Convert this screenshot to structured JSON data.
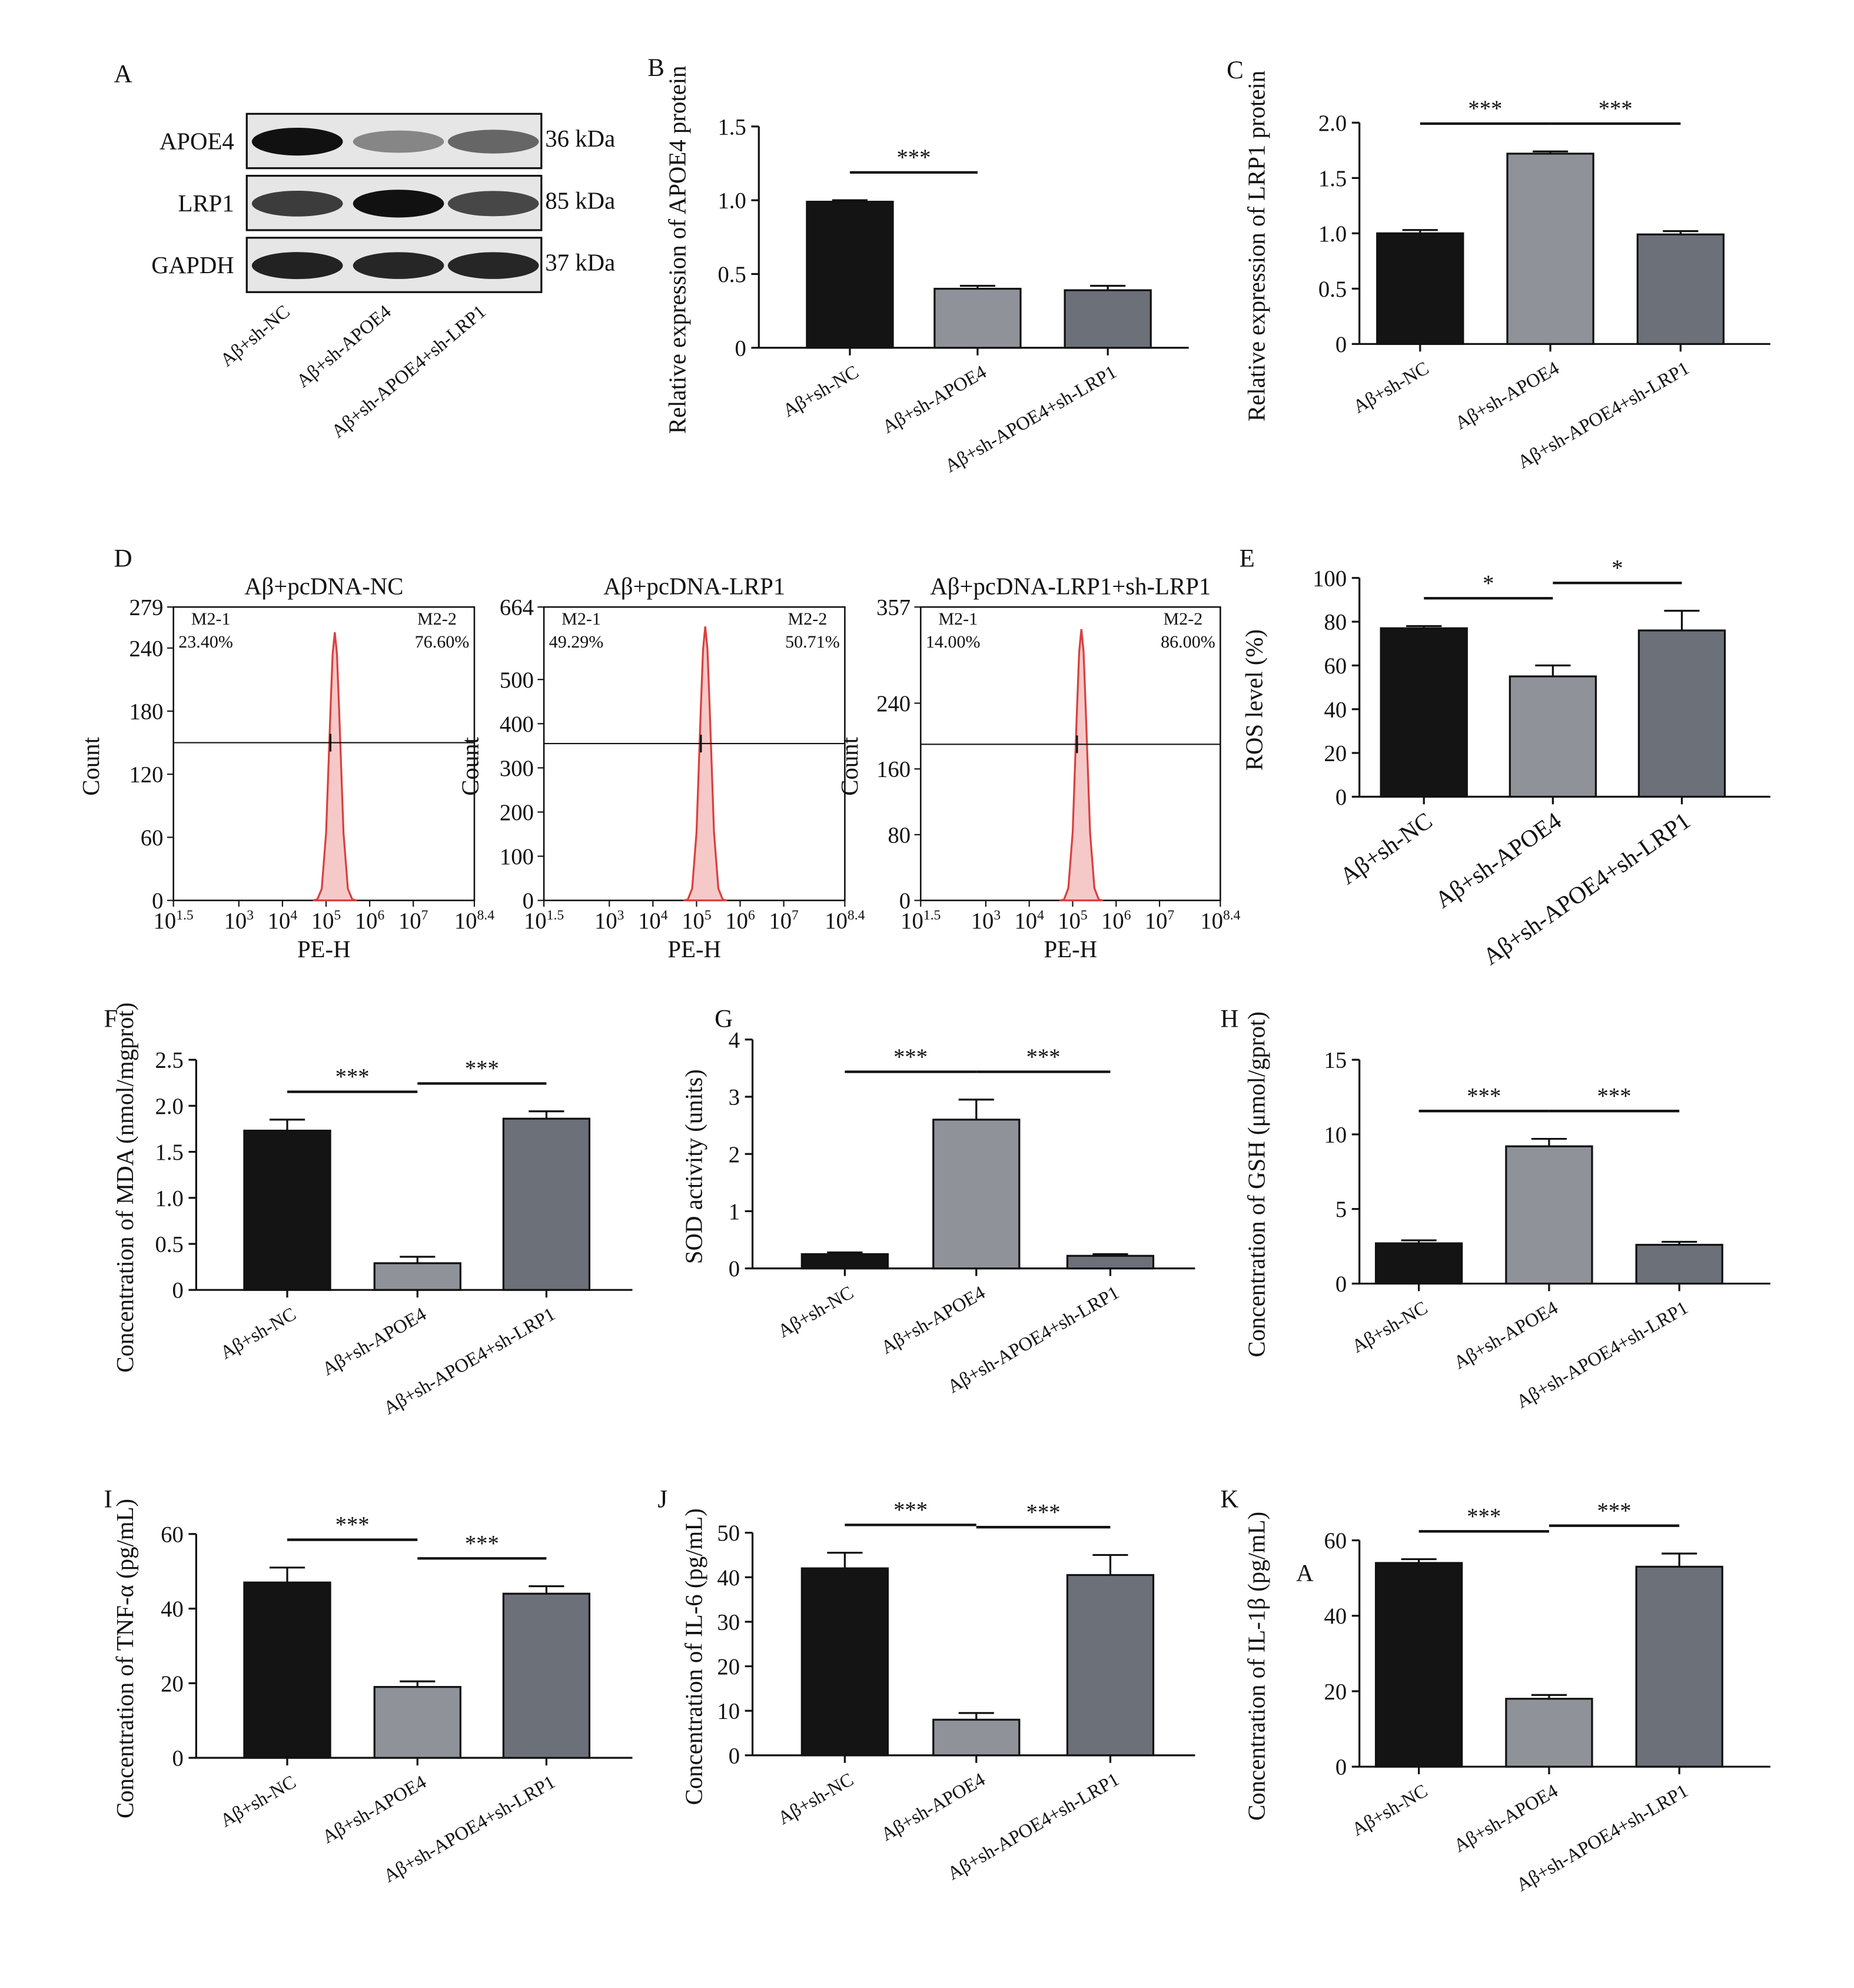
{
  "chart_data": [
    {
      "type": "blot",
      "label": "A",
      "rows": [
        {
          "name": "APOE4",
          "size": "36 kDa"
        },
        {
          "name": "LRP1",
          "size": "85 kDa"
        },
        {
          "name": "GAPDH",
          "size": "37 kDa"
        }
      ],
      "categories": [
        "Aβ+sh-NC",
        "Aβ+sh-APOE4",
        "Aβ+sh-APOE4+sh-LRP1"
      ]
    },
    {
      "type": "bar",
      "label": "B",
      "ylabel": "Relative expression of APOE4 protein",
      "categories": [
        "Aβ+sh-NC",
        "Aβ+sh-APOE4",
        "Aβ+sh-APOE4+sh-LRP1"
      ],
      "values": [
        0.99,
        0.4,
        0.39
      ],
      "errors": [
        0.01,
        0.02,
        0.03
      ],
      "colors": [
        "#141414",
        "#8f9399",
        "#6c7079"
      ],
      "ylim": [
        0,
        1.5
      ],
      "yticks": [
        0,
        0.5,
        {
          "value": 1,
          "label": "1.0"
        },
        1.5
      ],
      "annotations": [
        "***"
      ]
    },
    {
      "type": "bar",
      "label": "C",
      "ylabel": "Relative expression of LRP1 protein",
      "categories": [
        "Aβ+sh-NC",
        "Aβ+sh-APOE4",
        "Aβ+sh-APOE4+sh-LRP1"
      ],
      "values": [
        1.0,
        1.72,
        0.99
      ],
      "errors": [
        0.03,
        0.02,
        0.03
      ],
      "colors": [
        "#141414",
        "#8f9399",
        "#6c7079"
      ],
      "ylim": [
        0,
        2
      ],
      "yticks": [
        0,
        0.5,
        {
          "value": 1,
          "label": "1.0"
        },
        1.5,
        {
          "value": 2,
          "label": "2.0"
        }
      ],
      "annotations": [
        "***",
        "***"
      ]
    },
    {
      "type": "flow",
      "label": "D",
      "title": "Aβ+pcDNA-NC",
      "xlabel": "PE-H",
      "ylabel": "Count",
      "x": [
        50119,
        63096,
        79433,
        100000,
        125893,
        141254,
        158489,
        177828,
        199526,
        251189,
        316228,
        398107,
        501187
      ],
      "values": [
        0,
        1,
        11,
        64,
        180,
        234,
        255,
        234,
        180,
        64,
        11,
        1,
        0
      ],
      "xlim": [
        31.62,
        251188643
      ],
      "xticks": [
        {
          "value": 31.62,
          "label": "10",
          "sup": "1.5"
        },
        {
          "value": 1000,
          "label": "10",
          "sup": "3"
        },
        {
          "value": 10000,
          "label": "10",
          "sup": "4"
        },
        {
          "value": 100000,
          "label": "10",
          "sup": "5"
        },
        {
          "value": 1000000,
          "label": "10",
          "sup": "6"
        },
        {
          "value": 10000000,
          "label": "10",
          "sup": "7"
        },
        {
          "value": 251188643,
          "label": "10",
          "sup": "8.4"
        }
      ],
      "ylim": [
        0,
        279
      ],
      "yticks": [
        0,
        60,
        120,
        180,
        240,
        279
      ],
      "gate_x": 125893,
      "gate_y": 150,
      "gates": [
        {
          "name": "M2-1",
          "value": 23.4,
          "label": "23.40%"
        },
        {
          "name": "M2-2",
          "value": 76.6,
          "label": "76.60%"
        }
      ],
      "color": "#d9403f"
    },
    {
      "type": "flow",
      "title": "Aβ+pcDNA-LRP1",
      "xlabel": "PE-H",
      "ylabel": "Count",
      "x": [
        50119,
        63096,
        79433,
        100000,
        125893,
        141254,
        158489,
        177828,
        199526,
        251189,
        316228,
        398107,
        501187
      ],
      "values": [
        0,
        2,
        27,
        155,
        440,
        569,
        620,
        569,
        440,
        155,
        27,
        2,
        0
      ],
      "xlim": [
        31.62,
        251188643
      ],
      "xticks": [
        {
          "value": 31.62,
          "label": "10",
          "sup": "1.5"
        },
        {
          "value": 1000,
          "label": "10",
          "sup": "3"
        },
        {
          "value": 10000,
          "label": "10",
          "sup": "4"
        },
        {
          "value": 100000,
          "label": "10",
          "sup": "5"
        },
        {
          "value": 1000000,
          "label": "10",
          "sup": "6"
        },
        {
          "value": 10000000,
          "label": "10",
          "sup": "7"
        },
        {
          "value": 251188643,
          "label": "10",
          "sup": "8.4"
        }
      ],
      "ylim": [
        0,
        664
      ],
      "yticks": [
        0,
        100,
        200,
        300,
        400,
        500,
        664
      ],
      "gate_x": 125893,
      "gate_y": 355,
      "gates": [
        {
          "name": "M2-1",
          "value": 49.29,
          "label": "49.29%"
        },
        {
          "name": "M2-2",
          "value": 50.71,
          "label": "50.71%"
        }
      ],
      "color": "#d9403f"
    },
    {
      "type": "flow",
      "title": "Aβ+pcDNA-LRP1+sh-LRP1",
      "xlabel": "PE-H",
      "ylabel": "Count",
      "x": [
        50119,
        63096,
        79433,
        100000,
        125893,
        141254,
        158489,
        177828,
        199526,
        251189,
        316228,
        398107,
        501187
      ],
      "values": [
        0,
        1,
        15,
        83,
        234,
        303,
        330,
        303,
        234,
        83,
        15,
        1,
        0
      ],
      "xlim": [
        31.62,
        251188643
      ],
      "xticks": [
        {
          "value": 31.62,
          "label": "10",
          "sup": "1.5"
        },
        {
          "value": 1000,
          "label": "10",
          "sup": "3"
        },
        {
          "value": 10000,
          "label": "10",
          "sup": "4"
        },
        {
          "value": 100000,
          "label": "10",
          "sup": "5"
        },
        {
          "value": 1000000,
          "label": "10",
          "sup": "6"
        },
        {
          "value": 10000000,
          "label": "10",
          "sup": "7"
        },
        {
          "value": 251188643,
          "label": "10",
          "sup": "8.4"
        }
      ],
      "ylim": [
        0,
        357
      ],
      "yticks": [
        0,
        80,
        160,
        240,
        357
      ],
      "gate_x": 125893,
      "gate_y": 190,
      "gates": [
        {
          "name": "M2-1",
          "value": 14.0,
          "label": "14.00%"
        },
        {
          "name": "M2-2",
          "value": 86.0,
          "label": "86.00%"
        }
      ],
      "color": "#d9403f"
    },
    {
      "type": "bar",
      "label": "E",
      "ylabel": "ROS level (%)",
      "categories": [
        "Aβ+sh-NC",
        "Aβ+sh-APOE4",
        "Aβ+sh-APOE4+sh-LRP1"
      ],
      "values": [
        77,
        55,
        76
      ],
      "errors": [
        1,
        5,
        9
      ],
      "colors": [
        "#141414",
        "#8f9399",
        "#6c7079"
      ],
      "ylim": [
        0,
        100
      ],
      "yticks": [
        0,
        20,
        40,
        60,
        80,
        100
      ],
      "annotations": [
        "*",
        "*"
      ]
    },
    {
      "type": "bar",
      "label": "F",
      "ylabel": "Concentration of MDA (nmol/mgprot)",
      "categories": [
        "Aβ+sh-NC",
        "Aβ+sh-APOE4",
        "Aβ+sh-APOE4+sh-LRP1"
      ],
      "values": [
        1.73,
        0.29,
        1.86
      ],
      "errors": [
        0.12,
        0.07,
        0.08
      ],
      "colors": [
        "#141414",
        "#8f9399",
        "#6c7079"
      ],
      "ylim": [
        0,
        2.5
      ],
      "yticks": [
        0,
        0.5,
        {
          "value": 1,
          "label": "1.0"
        },
        1.5,
        {
          "value": 2,
          "label": "2.0"
        },
        2.5
      ],
      "annotations": [
        "***",
        "***"
      ]
    },
    {
      "type": "bar",
      "label": "G",
      "ylabel": "SOD activity (units)",
      "categories": [
        "Aβ+sh-NC",
        "Aβ+sh-APOE4",
        "Aβ+sh-APOE4+sh-LRP1"
      ],
      "values": [
        0.25,
        2.6,
        0.22
      ],
      "errors": [
        0.03,
        0.35,
        0.03
      ],
      "colors": [
        "#141414",
        "#8f9399",
        "#6c7079"
      ],
      "ylim": [
        0,
        4
      ],
      "yticks": [
        0,
        1,
        2,
        3,
        4
      ],
      "annotations": [
        "***",
        "***"
      ]
    },
    {
      "type": "bar",
      "label": "H",
      "ylabel": "Concentration of GSH (μmol/gprot)",
      "categories": [
        "Aβ+sh-NC",
        "Aβ+sh-APOE4",
        "Aβ+sh-APOE4+sh-LRP1"
      ],
      "values": [
        2.7,
        9.2,
        2.6
      ],
      "errors": [
        0.2,
        0.5,
        0.2
      ],
      "colors": [
        "#141414",
        "#8f9399",
        "#6c7079"
      ],
      "ylim": [
        0,
        15
      ],
      "yticks": [
        0,
        5,
        10,
        15
      ],
      "annotations": [
        "***",
        "***"
      ]
    },
    {
      "type": "bar",
      "label": "I",
      "ylabel": "Concentration of TNF-α (pg/mL)",
      "categories": [
        "Aβ+sh-NC",
        "Aβ+sh-APOE4",
        "Aβ+sh-APOE4+sh-LRP1"
      ],
      "values": [
        47,
        19,
        44
      ],
      "errors": [
        4,
        1.5,
        2
      ],
      "colors": [
        "#141414",
        "#8f9399",
        "#6c7079"
      ],
      "ylim": [
        0,
        60
      ],
      "yticks": [
        0,
        20,
        40,
        60
      ],
      "annotations": [
        "***",
        "***"
      ]
    },
    {
      "type": "bar",
      "label": "J",
      "ylabel": "Concentration of IL-6 (pg/mL)",
      "categories": [
        "Aβ+sh-NC",
        "Aβ+sh-APOE4",
        "Aβ+sh-APOE4+sh-LRP1"
      ],
      "values": [
        42,
        8,
        40.5
      ],
      "errors": [
        3.5,
        1.5,
        4.5
      ],
      "colors": [
        "#141414",
        "#8f9399",
        "#6c7079"
      ],
      "ylim": [
        0,
        50
      ],
      "yticks": [
        0,
        10,
        20,
        30,
        40,
        50
      ],
      "annotations": [
        "***",
        "***"
      ]
    },
    {
      "type": "bar",
      "label": "K",
      "ylabel": "Concentration of IL-1β (pg/mL)",
      "categories": [
        "Aβ+sh-NC",
        "Aβ+sh-APOE4",
        "Aβ+sh-APOE4+sh-LRP1"
      ],
      "values": [
        54,
        18,
        53
      ],
      "errors": [
        1,
        1,
        3.5
      ],
      "colors": [
        "#141414",
        "#8f9399",
        "#6c7079"
      ],
      "ylim": [
        0,
        60
      ],
      "yticks": [
        0,
        20,
        40,
        60
      ],
      "annotations": [
        "***",
        "***"
      ],
      "note": "A"
    }
  ]
}
